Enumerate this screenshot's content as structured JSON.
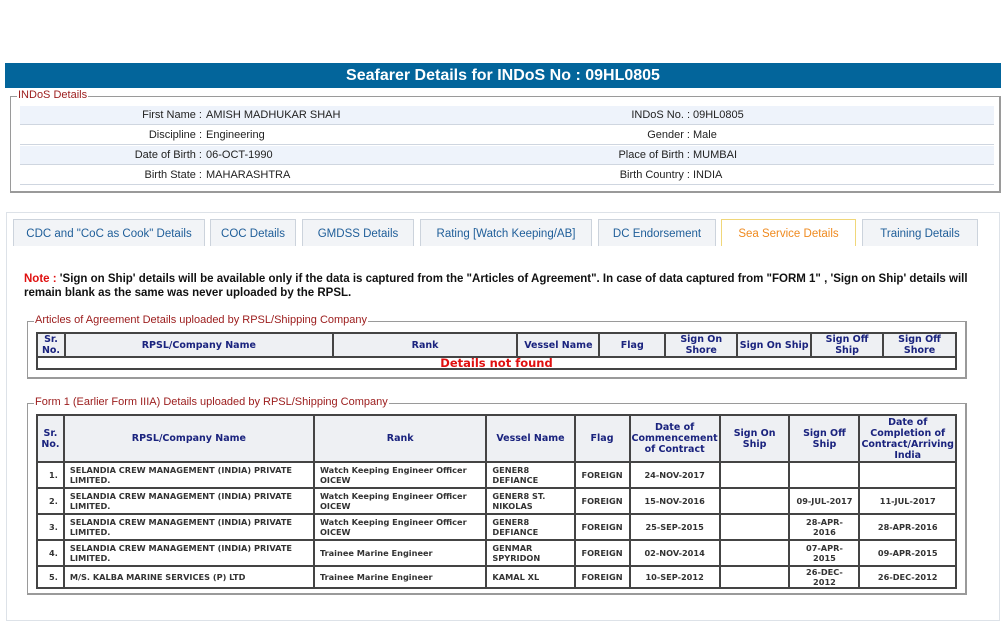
{
  "header": {
    "title": "Seafarer Details for INDoS No : 09HL0805"
  },
  "indos": {
    "legend": "INDoS Details",
    "rows": [
      {
        "l1": "First Name :",
        "v1": "AMISH MADHUKAR SHAH",
        "l2": "INDoS No. :",
        "v2": "09HL0805"
      },
      {
        "l1": "Discipline :",
        "v1": "Engineering",
        "l2": "Gender :",
        "v2": "Male"
      },
      {
        "l1": "Date of Birth :",
        "v1": "06-OCT-1990",
        "l2": "Place of Birth :",
        "v2": "MUMBAI"
      },
      {
        "l1": "Birth State :",
        "v1": "MAHARASHTRA",
        "l2": "Birth Country :",
        "v2": "INDIA"
      }
    ]
  },
  "tabs": [
    {
      "label": "CDC and \"CoC as Cook\" Details"
    },
    {
      "label": "COC Details"
    },
    {
      "label": "GMDSS Details"
    },
    {
      "label": "Rating [Watch Keeping/AB]"
    },
    {
      "label": "DC Endorsement"
    },
    {
      "label": "Sea Service Details",
      "active": true
    },
    {
      "label": "Training Details"
    }
  ],
  "note": {
    "label": "Note :",
    "text": " 'Sign on Ship' details will be available only if the data is captured from the \"Articles of Agreement\". In case of data captured from \"FORM 1\" , 'Sign on Ship' details will remain blank as the same was never uploaded by the RPSL."
  },
  "articles": {
    "legend": "Articles of Agreement Details uploaded by RPSL/Shipping Company",
    "columns": [
      "Sr. No.",
      "RPSL/Company Name",
      "Rank",
      "Vessel Name",
      "Flag",
      "Sign On Shore",
      "Sign On Ship",
      "Sign Off Ship",
      "Sign Off Shore"
    ],
    "empty": "Details not found"
  },
  "form1": {
    "legend": "Form 1 (Earlier Form IIIA) Details uploaded by RPSL/Shipping Company",
    "columns": [
      "Sr. No.",
      "RPSL/Company Name",
      "Rank",
      "Vessel Name",
      "Flag",
      "Date of Commencement of Contract",
      "Sign On Ship",
      "Sign Off Ship",
      "Date of Completion of Contract/Arriving India"
    ],
    "rows": [
      [
        "1.",
        "SELANDIA CREW MANAGEMENT (INDIA) PRIVATE LIMITED.",
        "Watch Keeping Engineer Officer OICEW",
        "GENER8 DEFIANCE",
        "FOREIGN",
        "24-NOV-2017",
        "",
        "",
        ""
      ],
      [
        "2.",
        "SELANDIA CREW MANAGEMENT (INDIA) PRIVATE LIMITED.",
        "Watch Keeping Engineer Officer OICEW",
        "GENER8 ST. NIKOLAS",
        "FOREIGN",
        "15-NOV-2016",
        "",
        "09-JUL-2017",
        "11-JUL-2017"
      ],
      [
        "3.",
        "SELANDIA CREW MANAGEMENT (INDIA) PRIVATE LIMITED.",
        "Watch Keeping Engineer Officer OICEW",
        "GENER8 DEFIANCE",
        "FOREIGN",
        "25-SEP-2015",
        "",
        "28-APR-2016",
        "28-APR-2016"
      ],
      [
        "4.",
        "SELANDIA CREW MANAGEMENT (INDIA) PRIVATE LIMITED.",
        "Trainee Marine Engineer",
        "GENMAR SPYRIDON",
        "FOREIGN",
        "02-NOV-2014",
        "",
        "07-APR-2015",
        "09-APR-2015"
      ],
      [
        "5.",
        "M/S. KALBA MARINE SERVICES (P) LTD",
        "Trainee Marine Engineer",
        "KAMAL XL",
        "FOREIGN",
        "10-SEP-2012",
        "",
        "26-DEC-2012",
        "26-DEC-2012"
      ]
    ]
  }
}
